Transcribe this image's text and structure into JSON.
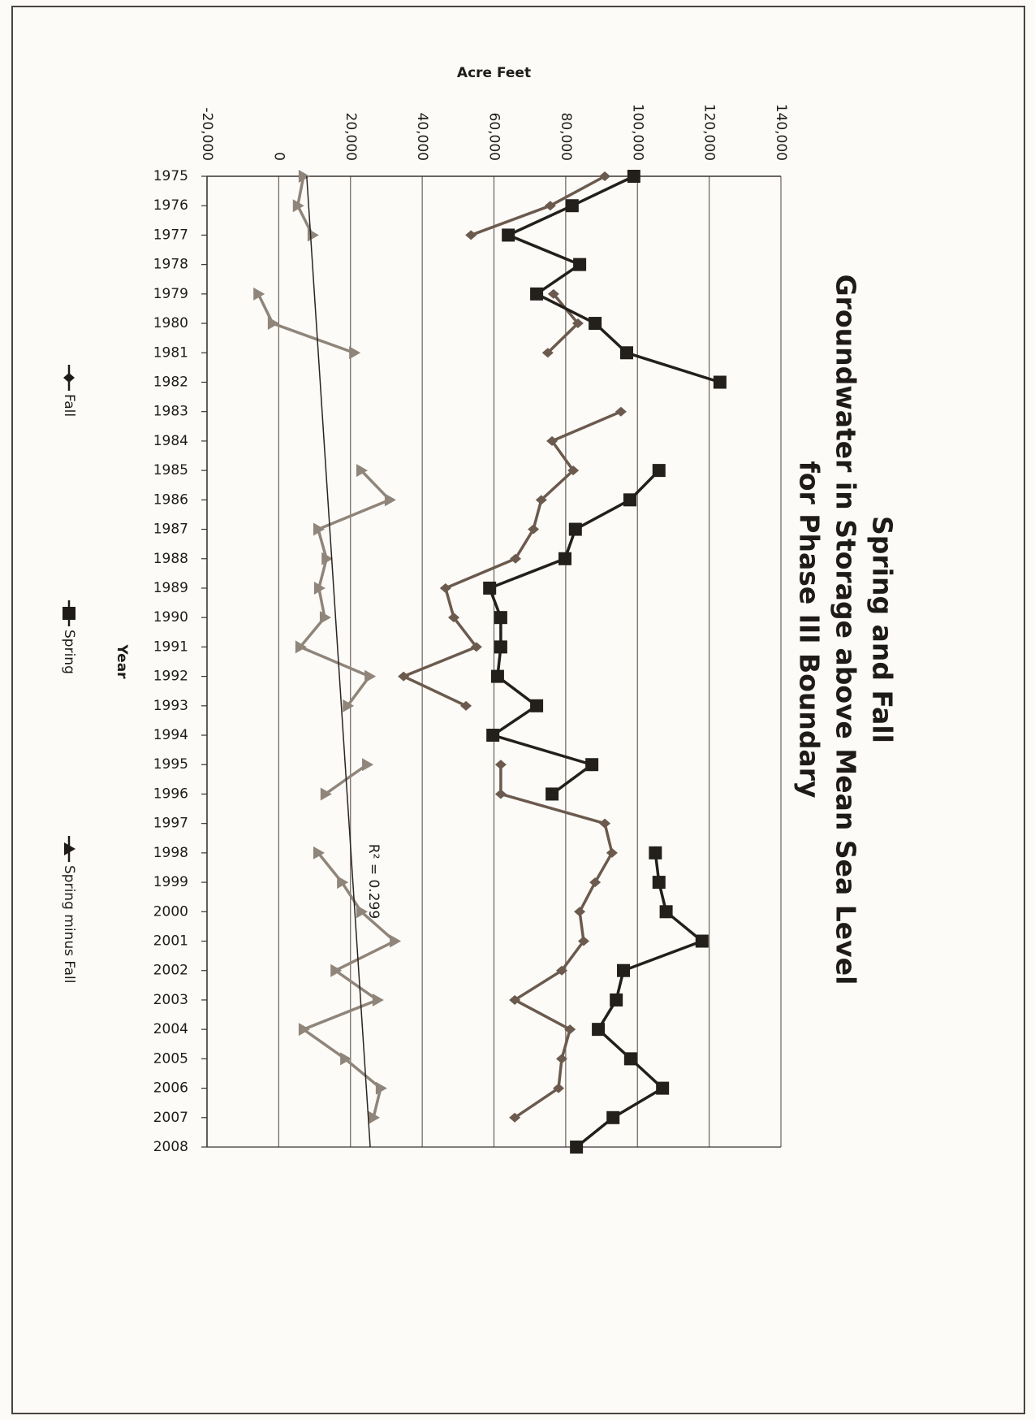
{
  "chart_data": {
    "type": "line",
    "title": [
      "Spring and Fall",
      "Groundwater in Storage above Mean Sea Level",
      "for Phase III Boundary"
    ],
    "x_label": "Year",
    "y_label": "Acre Feet",
    "x": [
      1975,
      1976,
      1977,
      1978,
      1979,
      1980,
      1981,
      1982,
      1983,
      1984,
      1985,
      1986,
      1987,
      1988,
      1989,
      1990,
      1991,
      1992,
      1993,
      1994,
      1995,
      1996,
      1997,
      1998,
      1999,
      2000,
      2001,
      2002,
      2003,
      2004,
      2005,
      2006,
      2007,
      2008
    ],
    "xlim": [
      1975,
      2008
    ],
    "xticks": [
      1975,
      1976,
      1977,
      1978,
      1979,
      1980,
      1981,
      1982,
      1983,
      1984,
      1985,
      1986,
      1987,
      1988,
      1989,
      1990,
      1991,
      1992,
      1993,
      1994,
      1995,
      1996,
      1997,
      1998,
      1999,
      2000,
      2001,
      2002,
      2003,
      2004,
      2005,
      2006,
      2007,
      2008
    ],
    "ylim": [
      -20000,
      140000
    ],
    "yticks": [
      {
        "value": -20000,
        "label": "-20,000"
      },
      0,
      {
        "value": 20000,
        "label": "20,000"
      },
      {
        "value": 40000,
        "label": "40,000"
      },
      {
        "value": 60000,
        "label": "60,000"
      },
      {
        "value": 80000,
        "label": "80,000"
      },
      {
        "value": 100000,
        "label": "100,000"
      },
      {
        "value": 120000,
        "label": "120,000"
      },
      {
        "value": 140000,
        "label": "140,000"
      }
    ],
    "grid": true,
    "legend": "bottom",
    "rotation": 90,
    "series": [
      {
        "name": "Fall",
        "color": "#6b5a4d",
        "marker": "diamond",
        "values": [
          90900,
          75700,
          53600,
          null,
          76600,
          83400,
          75000,
          null,
          95400,
          76200,
          82100,
          73200,
          71000,
          66000,
          46500,
          48800,
          55100,
          34800,
          52200,
          null,
          61900,
          61900,
          90900,
          92900,
          88200,
          83900,
          85000,
          78900,
          65800,
          81200,
          78900,
          78000,
          65800,
          null
        ]
      },
      {
        "name": "Spring",
        "color": "#231f1a",
        "marker": "square",
        "values": [
          99000,
          81800,
          64000,
          83900,
          71900,
          88200,
          97000,
          123000,
          null,
          null,
          106000,
          97900,
          82700,
          79800,
          58800,
          61900,
          61900,
          61000,
          71900,
          59700,
          87300,
          76200,
          null,
          105000,
          106000,
          108000,
          118000,
          96100,
          94100,
          89100,
          98100,
          107000,
          93200,
          83000
        ]
      },
      {
        "name": "Spring  minus Fall",
        "color": "#8f857a",
        "marker": "triangle",
        "values": [
          6900,
          5300,
          9400,
          null,
          -5700,
          -1700,
          21000,
          null,
          null,
          null,
          23000,
          30900,
          11000,
          13300,
          11200,
          12800,
          6000,
          25300,
          19200,
          null,
          24600,
          13000,
          null,
          11000,
          17600,
          23000,
          32300,
          15800,
          27500,
          6900,
          18500,
          28400,
          26400,
          null
        ]
      }
    ],
    "trendline": {
      "x": [
        1975,
        2008
      ],
      "values": [
        7800,
        25500
      ],
      "color": "#2a2420",
      "label": "R² = 0.299"
    }
  }
}
